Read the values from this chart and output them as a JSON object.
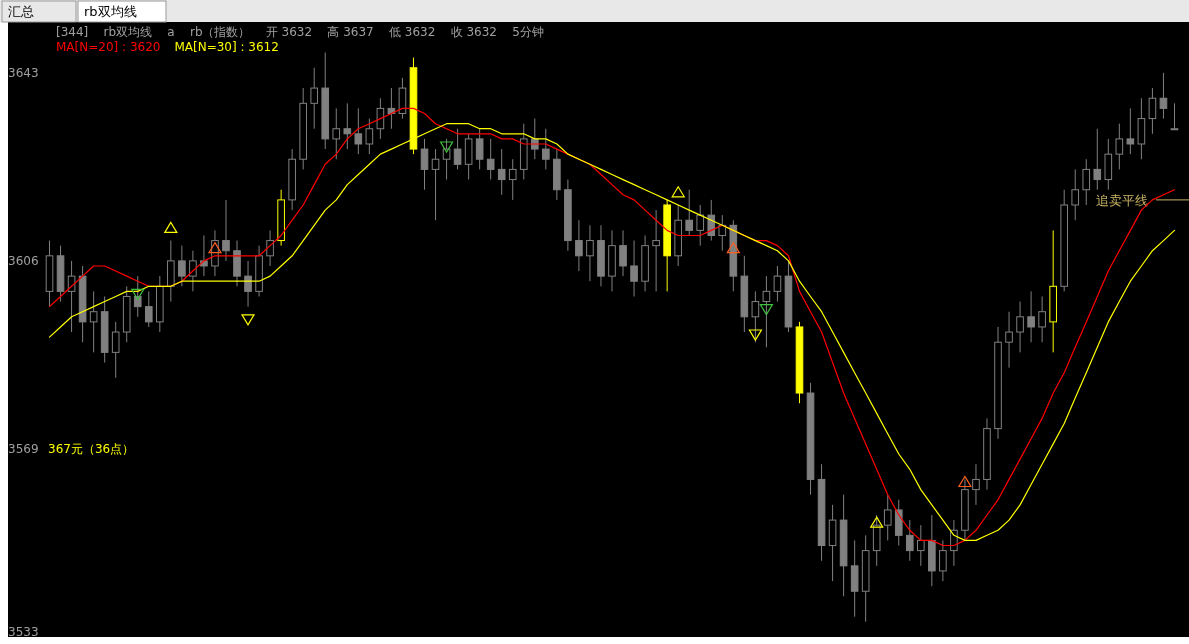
{
  "chart_data": {
    "type": "candlestick",
    "title": "[344]    rb双均线    a    rb（指数）    开 3632    高 3637    低 3632    收 3632    5分钟",
    "annotations": [
      "汇总",
      "rb双均线",
      "367元（36点）"
    ],
    "categories": [
      null,
      null,
      null,
      null,
      null,
      null,
      null,
      null,
      null,
      null,
      null,
      null,
      null,
      null,
      null,
      null,
      null,
      null,
      null,
      null,
      null,
      null,
      null,
      null,
      null,
      null,
      null,
      null,
      null,
      null,
      null,
      null,
      null,
      null,
      null,
      null,
      null,
      null,
      null,
      null,
      null,
      null,
      null,
      null,
      null,
      null,
      null,
      null,
      null,
      null,
      null,
      null,
      null,
      null,
      null,
      null,
      null,
      null,
      null,
      null,
      null,
      null,
      null,
      null,
      null,
      null,
      null,
      null,
      null,
      null,
      null,
      null,
      null,
      null,
      null,
      null,
      null,
      null,
      null,
      null,
      null,
      null,
      null,
      null,
      null,
      null,
      null,
      null,
      null,
      null,
      null,
      null,
      null,
      null,
      null,
      null,
      null,
      null,
      null,
      null,
      null,
      null,
      null
    ],
    "ohlc": [
      [
        3600,
        3610,
        3597,
        3607
      ],
      [
        3607,
        3609,
        3598,
        3600
      ],
      [
        3600,
        3606,
        3592,
        3603
      ],
      [
        3603,
        3605,
        3590,
        3594
      ],
      [
        3594,
        3600,
        3588,
        3596
      ],
      [
        3596,
        3599,
        3586,
        3588
      ],
      [
        3588,
        3594,
        3583,
        3592
      ],
      [
        3592,
        3601,
        3590,
        3599
      ],
      [
        3599,
        3603,
        3595,
        3597
      ],
      [
        3597,
        3600,
        3593,
        3594
      ],
      [
        3594,
        3603,
        3592,
        3601
      ],
      [
        3601,
        3610,
        3598,
        3606
      ],
      [
        3606,
        3609,
        3601,
        3603
      ],
      [
        3603,
        3608,
        3600,
        3606
      ],
      [
        3606,
        3611,
        3603,
        3605
      ],
      [
        3605,
        3612,
        3603,
        3610
      ],
      [
        3610,
        3618,
        3606,
        3608
      ],
      [
        3608,
        3610,
        3601,
        3603
      ],
      [
        3603,
        3606,
        3597,
        3600
      ],
      [
        3600,
        3609,
        3599,
        3607
      ],
      [
        3607,
        3612,
        3605,
        3610
      ],
      [
        3610,
        3620,
        3609,
        3618
      ],
      [
        3618,
        3628,
        3616,
        3626
      ],
      [
        3626,
        3640,
        3624,
        3637
      ],
      [
        3637,
        3644,
        3632,
        3640
      ],
      [
        3640,
        3647,
        3628,
        3630
      ],
      [
        3630,
        3636,
        3626,
        3632
      ],
      [
        3632,
        3637,
        3628,
        3631
      ],
      [
        3631,
        3636,
        3627,
        3629
      ],
      [
        3629,
        3634,
        3627,
        3632
      ],
      [
        3632,
        3638,
        3630,
        3636
      ],
      [
        3636,
        3640,
        3632,
        3635
      ],
      [
        3635,
        3642,
        3634,
        3640
      ],
      [
        3644,
        3646,
        3627,
        3628
      ],
      [
        3628,
        3630,
        3620,
        3624
      ],
      [
        3624,
        3628,
        3614,
        3626
      ],
      [
        3626,
        3630,
        3622,
        3628
      ],
      [
        3628,
        3632,
        3624,
        3625
      ],
      [
        3625,
        3631,
        3622,
        3630
      ],
      [
        3630,
        3632,
        3624,
        3626
      ],
      [
        3626,
        3630,
        3622,
        3624
      ],
      [
        3624,
        3628,
        3619,
        3622
      ],
      [
        3622,
        3626,
        3618,
        3624
      ],
      [
        3624,
        3633,
        3622,
        3630
      ],
      [
        3630,
        3634,
        3626,
        3628
      ],
      [
        3628,
        3632,
        3624,
        3626
      ],
      [
        3626,
        3628,
        3618,
        3620
      ],
      [
        3620,
        3622,
        3608,
        3610
      ],
      [
        3610,
        3614,
        3604,
        3607
      ],
      [
        3607,
        3613,
        3602,
        3610
      ],
      [
        3610,
        3613,
        3601,
        3603
      ],
      [
        3603,
        3612,
        3600,
        3609
      ],
      [
        3609,
        3612,
        3603,
        3605
      ],
      [
        3605,
        3610,
        3599,
        3602
      ],
      [
        3602,
        3611,
        3600,
        3609
      ],
      [
        3609,
        3616,
        3600,
        3610
      ],
      [
        3617,
        3618,
        3600,
        3607
      ],
      [
        3607,
        3617,
        3605,
        3614
      ],
      [
        3614,
        3620,
        3611,
        3612
      ],
      [
        3612,
        3617,
        3609,
        3615
      ],
      [
        3615,
        3618,
        3610,
        3611
      ],
      [
        3611,
        3615,
        3608,
        3613
      ],
      [
        3613,
        3614,
        3600,
        3603
      ],
      [
        3603,
        3607,
        3592,
        3595
      ],
      [
        3595,
        3600,
        3590,
        3598
      ],
      [
        3598,
        3603,
        3589,
        3600
      ],
      [
        3600,
        3605,
        3598,
        3603
      ],
      [
        3603,
        3606,
        3592,
        3593
      ],
      [
        3593,
        3594,
        3578,
        3580
      ],
      [
        3580,
        3582,
        3560,
        3563
      ],
      [
        3563,
        3566,
        3547,
        3550
      ],
      [
        3550,
        3558,
        3543,
        3555
      ],
      [
        3555,
        3560,
        3540,
        3546
      ],
      [
        3546,
        3551,
        3536,
        3541
      ],
      [
        3541,
        3552,
        3535,
        3549
      ],
      [
        3549,
        3556,
        3546,
        3554
      ],
      [
        3554,
        3560,
        3551,
        3557
      ],
      [
        3557,
        3559,
        3550,
        3552
      ],
      [
        3552,
        3555,
        3547,
        3549
      ],
      [
        3549,
        3554,
        3546,
        3551
      ],
      [
        3551,
        3556,
        3542,
        3545
      ],
      [
        3545,
        3551,
        3543,
        3549
      ],
      [
        3549,
        3555,
        3546,
        3553
      ],
      [
        3553,
        3563,
        3551,
        3561
      ],
      [
        3561,
        3566,
        3558,
        3563
      ],
      [
        3563,
        3575,
        3561,
        3573
      ],
      [
        3573,
        3593,
        3571,
        3590
      ],
      [
        3590,
        3596,
        3585,
        3592
      ],
      [
        3592,
        3598,
        3588,
        3595
      ],
      [
        3595,
        3600,
        3590,
        3593
      ],
      [
        3593,
        3599,
        3590,
        3596
      ],
      [
        3594,
        3612,
        3588,
        3601
      ],
      [
        3601,
        3620,
        3600,
        3617
      ],
      [
        3617,
        3624,
        3614,
        3620
      ],
      [
        3620,
        3626,
        3617,
        3624
      ],
      [
        3624,
        3632,
        3620,
        3622
      ],
      [
        3622,
        3630,
        3620,
        3627
      ],
      [
        3627,
        3633,
        3624,
        3630
      ],
      [
        3630,
        3636,
        3627,
        3629
      ],
      [
        3629,
        3638,
        3626,
        3634
      ],
      [
        3634,
        3640,
        3631,
        3638
      ],
      [
        3638,
        3643,
        3634,
        3636
      ],
      [
        3632,
        3637,
        3632,
        3632
      ]
    ],
    "colors": [
      "#808080",
      "#808080",
      "#808080",
      "#808080",
      "#808080",
      "#808080",
      "#808080",
      "#808080",
      "#808080",
      "#808080",
      "#808080",
      "#808080",
      "#808080",
      "#808080",
      "#808080",
      "#808080",
      "#808080",
      "#808080",
      "#808080",
      "#808080",
      "#808080",
      "#ffff00",
      "#808080",
      "#808080",
      "#808080",
      "#808080",
      "#808080",
      "#808080",
      "#808080",
      "#808080",
      "#808080",
      "#808080",
      "#808080",
      "#ffff00",
      "#808080",
      "#808080",
      "#808080",
      "#808080",
      "#808080",
      "#808080",
      "#808080",
      "#808080",
      "#808080",
      "#808080",
      "#808080",
      "#808080",
      "#808080",
      "#808080",
      "#808080",
      "#808080",
      "#808080",
      "#808080",
      "#808080",
      "#808080",
      "#808080",
      "#808080",
      "#ffff00",
      "#808080",
      "#808080",
      "#808080",
      "#808080",
      "#808080",
      "#808080",
      "#808080",
      "#808080",
      "#808080",
      "#808080",
      "#808080",
      "#ffff00",
      "#808080",
      "#808080",
      "#808080",
      "#808080",
      "#808080",
      "#808080",
      "#808080",
      "#808080",
      "#808080",
      "#808080",
      "#808080",
      "#808080",
      "#808080",
      "#808080",
      "#808080",
      "#808080",
      "#808080",
      "#808080",
      "#808080",
      "#808080",
      "#808080",
      "#808080",
      "#ffff00",
      "#808080",
      "#808080",
      "#808080",
      "#808080",
      "#808080",
      "#808080",
      "#808080",
      "#808080",
      "#808080",
      "#808080",
      "#808080"
    ],
    "series": [
      {
        "name": "MA[N=20] : 3620",
        "type": "line",
        "color": "#ff0000",
        "values": [
          3597,
          3599,
          3601,
          3603,
          3605,
          3605,
          3604,
          3603,
          3602,
          3601,
          3601,
          3601,
          3602,
          3604,
          3606,
          3607,
          3607,
          3607,
          3607,
          3607,
          3609,
          3611,
          3614,
          3617,
          3621,
          3625,
          3627,
          3630,
          3632,
          3633,
          3634,
          3635,
          3636,
          3636,
          3635,
          3633,
          3632,
          3631,
          3631,
          3631,
          3631,
          3630,
          3630,
          3629,
          3629,
          3629,
          3628,
          3627,
          3626,
          3625,
          3623,
          3621,
          3619,
          3618,
          3616,
          3614,
          3612,
          3611,
          3611,
          3611,
          3612,
          3613,
          3612,
          3611,
          3610,
          3610,
          3609,
          3607,
          3600,
          3596,
          3592,
          3586,
          3580,
          3575,
          3570,
          3565,
          3560,
          3556,
          3553,
          3551,
          3551,
          3550,
          3550,
          3551,
          3553,
          3556,
          3559,
          3563,
          3567,
          3571,
          3575,
          3580,
          3584,
          3589,
          3594,
          3599,
          3604,
          3608,
          3612,
          3616,
          3618,
          3619,
          3620
        ]
      },
      {
        "name": "MA[N=30] : 3612",
        "type": "line",
        "color": "#ffff00",
        "values": [
          3591,
          3593,
          3595,
          3596,
          3597,
          3598,
          3599,
          3600,
          3600,
          3601,
          3601,
          3601,
          3602,
          3602,
          3602,
          3602,
          3602,
          3602,
          3602,
          3602,
          3603,
          3605,
          3607,
          3610,
          3613,
          3616,
          3618,
          3621,
          3623,
          3625,
          3627,
          3628,
          3629,
          3630,
          3631,
          3632,
          3633,
          3633,
          3633,
          3632,
          3632,
          3631,
          3631,
          3631,
          3630,
          3630,
          3629,
          3627,
          3626,
          3625,
          3624,
          3623,
          3622,
          3621,
          3620,
          3619,
          3618,
          3617,
          3616,
          3615,
          3614,
          3613,
          3612,
          3611,
          3610,
          3609,
          3608,
          3606,
          3602,
          3599,
          3596,
          3592,
          3588,
          3584,
          3580,
          3576,
          3572,
          3568,
          3565,
          3561,
          3558,
          3555,
          3552,
          3551,
          3551,
          3552,
          3553,
          3555,
          3558,
          3562,
          3566,
          3570,
          3574,
          3579,
          3584,
          3589,
          3594,
          3598,
          3602,
          3605,
          3608,
          3610,
          3612
        ]
      },
      {
        "type": "scatter",
        "marker": "triangle",
        "colors": [
          null,
          null,
          null,
          null,
          null,
          null,
          null,
          null,
          null,
          null,
          null,
          "#ffff00",
          null,
          null,
          null,
          "#ff6020",
          null,
          null,
          null,
          null,
          null,
          null,
          null,
          null,
          null,
          null,
          null,
          null,
          null,
          null,
          null,
          null,
          null,
          null,
          null,
          null,
          null,
          null,
          null,
          null,
          null,
          null,
          null,
          null,
          null,
          null,
          null,
          null,
          null,
          null,
          null,
          null,
          null,
          null,
          null,
          null,
          null,
          "#ffff00",
          null,
          null,
          null,
          null,
          "#ff6020",
          null,
          null,
          null,
          null,
          null,
          null,
          null,
          null,
          null,
          null,
          null,
          null,
          "#ffff00",
          null,
          null,
          null,
          null,
          null,
          null,
          null,
          "#ff6020",
          null,
          null,
          null,
          null,
          null,
          null,
          null,
          null,
          null,
          null,
          null,
          null,
          null,
          null,
          null,
          null,
          null,
          null,
          null
        ],
        "values": [
          null,
          null,
          null,
          null,
          null,
          null,
          null,
          null,
          null,
          null,
          null,
          3612,
          null,
          null,
          null,
          3608,
          null,
          null,
          null,
          null,
          null,
          null,
          null,
          null,
          null,
          null,
          null,
          null,
          null,
          null,
          null,
          null,
          null,
          null,
          null,
          null,
          null,
          null,
          null,
          null,
          null,
          null,
          null,
          null,
          null,
          null,
          null,
          null,
          null,
          null,
          null,
          null,
          null,
          null,
          null,
          null,
          null,
          3619,
          null,
          null,
          null,
          null,
          3608,
          null,
          null,
          null,
          null,
          null,
          null,
          null,
          null,
          null,
          null,
          null,
          null,
          3554,
          null,
          null,
          null,
          null,
          null,
          null,
          null,
          3562,
          null,
          null,
          null,
          null,
          null,
          null,
          null,
          null,
          null,
          null,
          null,
          null,
          null,
          null,
          null,
          null,
          null,
          null,
          null
        ]
      },
      {
        "type": "scatter",
        "marker": "triangle_down",
        "colors": [
          null,
          null,
          null,
          null,
          null,
          null,
          null,
          null,
          "#40c040",
          null,
          null,
          null,
          null,
          null,
          null,
          null,
          null,
          null,
          "#ffff00",
          null,
          null,
          null,
          null,
          null,
          null,
          null,
          null,
          null,
          null,
          null,
          null,
          null,
          null,
          null,
          null,
          null,
          "#40c040",
          null,
          null,
          null,
          null,
          null,
          null,
          null,
          null,
          null,
          null,
          null,
          null,
          null,
          null,
          null,
          null,
          null,
          null,
          null,
          null,
          null,
          null,
          null,
          null,
          null,
          null,
          null,
          "#ffff00",
          "#40c040",
          null,
          null,
          null,
          null,
          null,
          null,
          null,
          null,
          null,
          null,
          null,
          null,
          null,
          null,
          null,
          null,
          null,
          null,
          null,
          null,
          null,
          null,
          null,
          null,
          null,
          null,
          null,
          null,
          null,
          null,
          null,
          null,
          null,
          null,
          null,
          null,
          null
        ],
        "values": [
          null,
          null,
          null,
          null,
          null,
          null,
          null,
          null,
          3600,
          null,
          null,
          null,
          null,
          null,
          null,
          null,
          null,
          null,
          3595,
          null,
          null,
          null,
          null,
          null,
          null,
          null,
          null,
          null,
          null,
          null,
          null,
          null,
          null,
          null,
          null,
          null,
          3629,
          null,
          null,
          null,
          null,
          null,
          null,
          null,
          null,
          null,
          null,
          null,
          null,
          null,
          null,
          null,
          null,
          null,
          null,
          null,
          null,
          null,
          null,
          null,
          null,
          null,
          null,
          null,
          3592,
          3597,
          null,
          null,
          null,
          null,
          null,
          null,
          null,
          null,
          null,
          null,
          null,
          null,
          null,
          null,
          null,
          null,
          null,
          null,
          null,
          null,
          null,
          null,
          null,
          null,
          null,
          null,
          null,
          null,
          null,
          null,
          null,
          null,
          null,
          null,
          null,
          null,
          null
        ]
      }
    ],
    "ref_lines": [
      {
        "axis": "y",
        "value": 3618,
        "label": "追卖平线",
        "color": "#c8b464"
      }
    ],
    "ylim": [
      3532,
      3653
    ],
    "yticks": [
      3643,
      3606,
      3569,
      3533
    ],
    "legend": "top left",
    "grid": false
  }
}
